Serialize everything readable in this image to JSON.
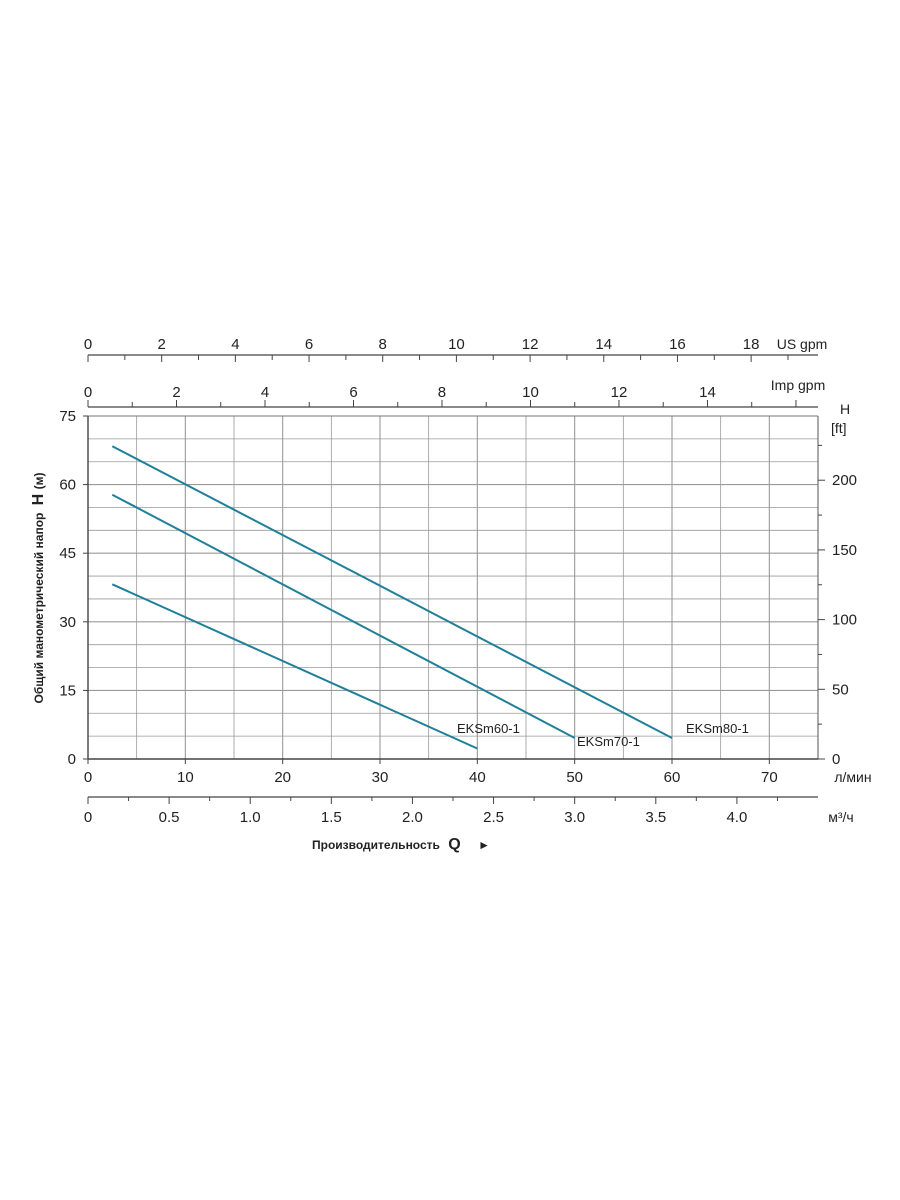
{
  "chart_data": {
    "type": "line",
    "x_range": [
      0,
      75
    ],
    "y_range": [
      0,
      75
    ],
    "xlabel": "л/мин",
    "ylabel_prefix": "Общий манометрический напор",
    "ylabel_symbol": "H",
    "ylabel_unit": "(м)",
    "x_ticks": [
      0,
      10,
      20,
      30,
      40,
      50,
      60,
      70
    ],
    "y_ticks": [
      0,
      15,
      30,
      45,
      60,
      75
    ],
    "series": [
      {
        "name": "EKSm60-1",
        "x": [
          2.5,
          40
        ],
        "y": [
          38.2,
          2.3
        ]
      },
      {
        "name": "EKSm70-1",
        "x": [
          2.5,
          50
        ],
        "y": [
          57.8,
          4.6
        ]
      },
      {
        "name": "EKSm80-1",
        "x": [
          2.5,
          60
        ],
        "y": [
          68.4,
          4.6
        ]
      }
    ],
    "secondary_axes": {
      "us_gpm": {
        "label": "US gpm",
        "ticks": [
          0,
          2,
          4,
          6,
          8,
          10,
          12,
          14,
          16,
          18
        ],
        "factor_lpm": 3.785
      },
      "imp_gpm": {
        "label": "Imp gpm",
        "ticks": [
          0,
          2,
          4,
          6,
          8,
          10,
          12,
          14
        ],
        "factor_lpm": 4.546
      },
      "m3h": {
        "label": "м³/ч",
        "ticks": [
          0,
          0.5,
          1.0,
          1.5,
          2.0,
          2.5,
          3.0,
          3.5,
          4.0
        ],
        "tick_labels": [
          "0",
          "0.5",
          "1.0",
          "1.5",
          "2.0",
          "2.5",
          "3.0",
          "3.5",
          "4.0"
        ],
        "factor_lpm": 16.667
      },
      "feet": {
        "label_top": "H",
        "label_bottom": "[ft]",
        "ticks": [
          0,
          50,
          100,
          150,
          200
        ],
        "factor_m": 0.3048
      }
    },
    "bottom_title": "Производительность",
    "bottom_title_symbol": "Q",
    "bottom_arrow": "►",
    "grid": true,
    "line_color": "#1f7f99",
    "grid_color": "#9a9a9a"
  }
}
